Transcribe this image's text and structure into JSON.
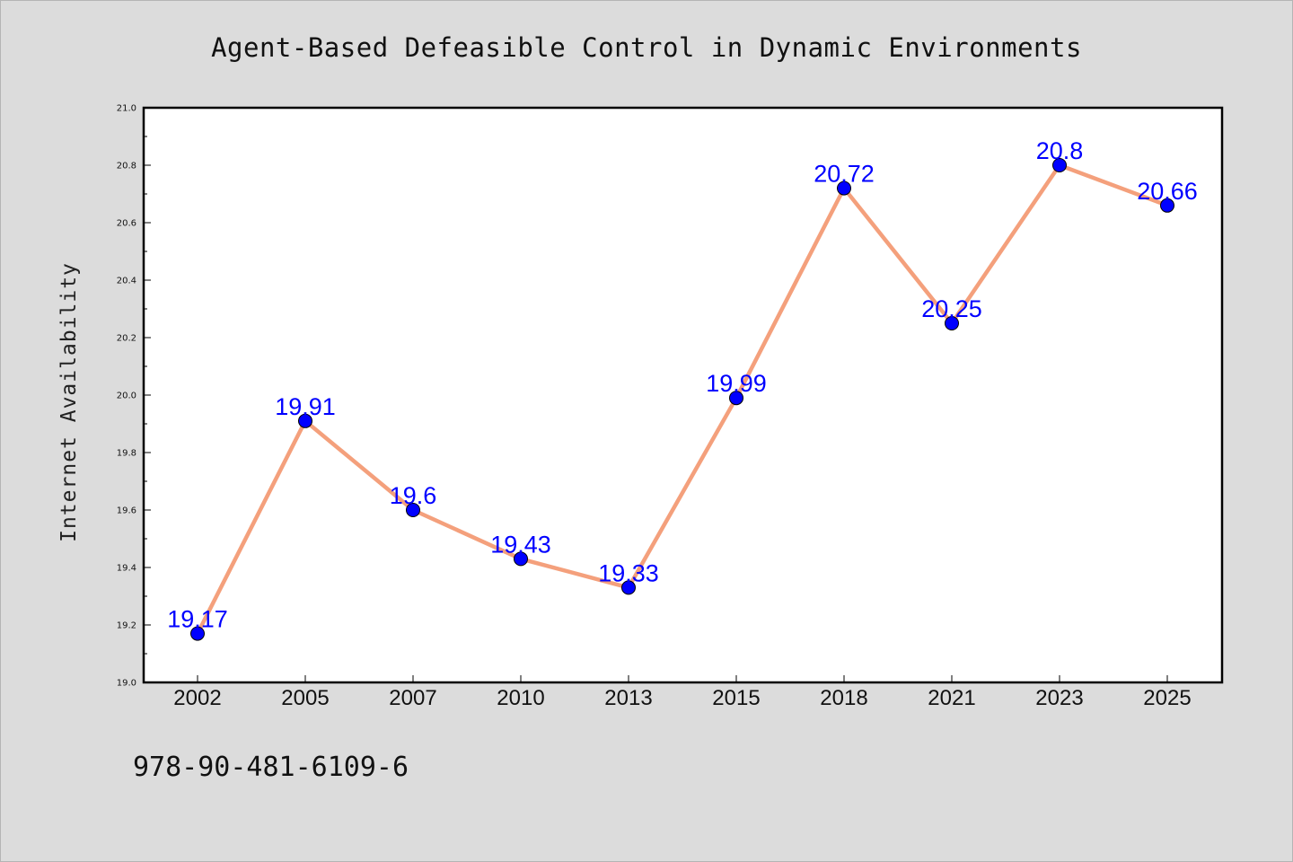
{
  "chart_data": {
    "type": "line",
    "title": "Agent-Based Defeasible Control in Dynamic Environments",
    "ylabel": "Internet Availability",
    "xlabel": "",
    "categories": [
      "2002",
      "2005",
      "2007",
      "2010",
      "2013",
      "2015",
      "2018",
      "2021",
      "2023",
      "2025"
    ],
    "series": [
      {
        "values": [
          19.17,
          19.91,
          19.6,
          19.43,
          19.33,
          19.99,
          20.72,
          20.25,
          20.8,
          20.66
        ],
        "line_color": "#f4a07c",
        "marker_color": "#0000ff"
      }
    ],
    "data_labels": [
      "19.17",
      "19.91",
      "19.6",
      "19.43",
      "19.33",
      "19.99",
      "20.72",
      "20.25",
      "20.8",
      "20.66"
    ],
    "ylim": [
      19.0,
      21.0
    ],
    "yticks": [
      "19.0",
      "19.2",
      "19.4",
      "19.6",
      "19.8",
      "20.0",
      "20.2",
      "20.4",
      "20.6",
      "20.8",
      "21.0"
    ],
    "grid": false,
    "legend": "none"
  },
  "footer": {
    "isbn": "978-90-481-6109-6"
  }
}
